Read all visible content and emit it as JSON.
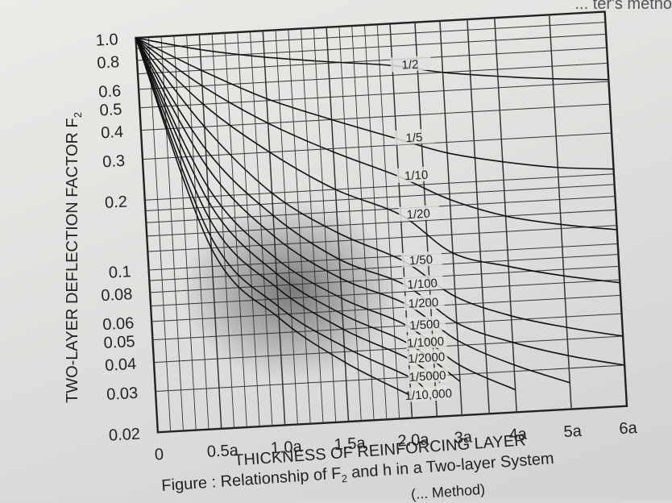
{
  "corner_text": "... ter's metho",
  "caption": "Figure : Relationship of F",
  "caption_tail": "and h in a Two-layer System",
  "caption_line2": "(... Method)",
  "chart_data": {
    "type": "line",
    "title": "",
    "xlabel": "THICKNESS OF REINFORCING LAYER",
    "ylabel": "TWO-LAYER DEFLECTION FACTOR F",
    "ylabel_sub": "2",
    "y_scale": "log",
    "ylim": [
      0.02,
      1.0
    ],
    "xlim": [
      0,
      6
    ],
    "x_unit": "a",
    "x_ticks": [
      {
        "v": 0,
        "label": "0"
      },
      {
        "v": 0.5,
        "label": "0.5a"
      },
      {
        "v": 1.0,
        "label": "1.0a"
      },
      {
        "v": 1.5,
        "label": "1.5a"
      },
      {
        "v": 2.0,
        "label": "2.0a"
      },
      {
        "v": 3,
        "label": "3a"
      },
      {
        "v": 4,
        "label": "4a"
      },
      {
        "v": 5,
        "label": "5a"
      },
      {
        "v": 6,
        "label": "6a"
      }
    ],
    "y_ticks": [
      {
        "v": 1.0,
        "label": "1.0"
      },
      {
        "v": 0.8,
        "label": "0.8"
      },
      {
        "v": 0.6,
        "label": "0.6"
      },
      {
        "v": 0.5,
        "label": "0.5"
      },
      {
        "v": 0.4,
        "label": "0.4"
      },
      {
        "v": 0.3,
        "label": "0.3"
      },
      {
        "v": 0.2,
        "label": "0.2"
      },
      {
        "v": 0.1,
        "label": "0.1"
      },
      {
        "v": 0.08,
        "label": "0.08"
      },
      {
        "v": 0.06,
        "label": "0.06"
      },
      {
        "v": 0.05,
        "label": "0.05"
      },
      {
        "v": 0.04,
        "label": "0.04"
      },
      {
        "v": 0.03,
        "label": "0.03"
      },
      {
        "v": 0.02,
        "label": "0.02"
      }
    ],
    "grid": true,
    "series": [
      {
        "name": "1/2",
        "x": [
          0,
          0.5,
          1.0,
          1.5,
          2.0,
          3,
          4,
          5,
          6
        ],
        "y": [
          1.0,
          0.86,
          0.77,
          0.71,
          0.66,
          0.6,
          0.56,
          0.53,
          0.51
        ]
      },
      {
        "name": "1/5",
        "x": [
          0,
          0.5,
          1.0,
          1.5,
          2.0,
          3,
          4,
          5,
          6
        ],
        "y": [
          1.0,
          0.7,
          0.51,
          0.4,
          0.32,
          0.27,
          0.24,
          0.22,
          0.21
        ]
      },
      {
        "name": "1/10",
        "x": [
          0,
          0.5,
          1.0,
          1.5,
          2.0,
          3,
          4,
          5,
          6
        ],
        "y": [
          1.0,
          0.6,
          0.4,
          0.29,
          0.22,
          0.17,
          0.14,
          0.125,
          0.115
        ]
      },
      {
        "name": "1/20",
        "x": [
          0,
          0.5,
          1.0,
          1.5,
          2.0,
          3,
          4,
          5,
          6
        ],
        "y": [
          1.0,
          0.5,
          0.3,
          0.2,
          0.15,
          0.1,
          0.085,
          0.075,
          0.068
        ]
      },
      {
        "name": "1/50",
        "x": [
          0,
          0.5,
          1.0,
          1.5,
          2.0,
          3,
          4,
          5,
          6
        ],
        "y": [
          1.0,
          0.4,
          0.2,
          0.13,
          0.095,
          0.065,
          0.052,
          0.045,
          0.04
        ]
      },
      {
        "name": "1/100",
        "x": [
          0,
          0.5,
          1.0,
          1.5,
          2.0,
          3,
          4,
          5,
          6
        ],
        "y": [
          1.0,
          0.32,
          0.16,
          0.1,
          0.075,
          0.05,
          0.04,
          0.034,
          0.03
        ]
      },
      {
        "name": "1/200",
        "x": [
          0,
          0.5,
          1.0,
          1.5,
          2.0,
          3,
          4,
          5
        ],
        "y": [
          1.0,
          0.27,
          0.13,
          0.083,
          0.062,
          0.042,
          0.032,
          0.026
        ]
      },
      {
        "name": "1/500",
        "x": [
          0,
          0.5,
          1.0,
          1.5,
          2.0,
          3,
          4
        ],
        "y": [
          1.0,
          0.22,
          0.105,
          0.068,
          0.05,
          0.033,
          0.025
        ]
      },
      {
        "name": "1/1000",
        "x": [
          0,
          0.5,
          1.0,
          1.5,
          2.0,
          3
        ],
        "y": [
          1.0,
          0.19,
          0.09,
          0.058,
          0.042,
          0.028
        ]
      },
      {
        "name": "1/2000",
        "x": [
          0,
          0.5,
          1.0,
          1.5,
          2.0,
          2.6
        ],
        "y": [
          1.0,
          0.16,
          0.078,
          0.05,
          0.036,
          0.028
        ]
      },
      {
        "name": "1/5000",
        "x": [
          0,
          0.5,
          1.0,
          1.5,
          2.0,
          2.3
        ],
        "y": [
          1.0,
          0.135,
          0.065,
          0.042,
          0.03,
          0.026
        ]
      },
      {
        "name": "1/10,000",
        "x": [
          0,
          0.5,
          1.0,
          1.5,
          2.0
        ],
        "y": [
          1.0,
          0.12,
          0.058,
          0.036,
          0.025
        ]
      }
    ]
  }
}
